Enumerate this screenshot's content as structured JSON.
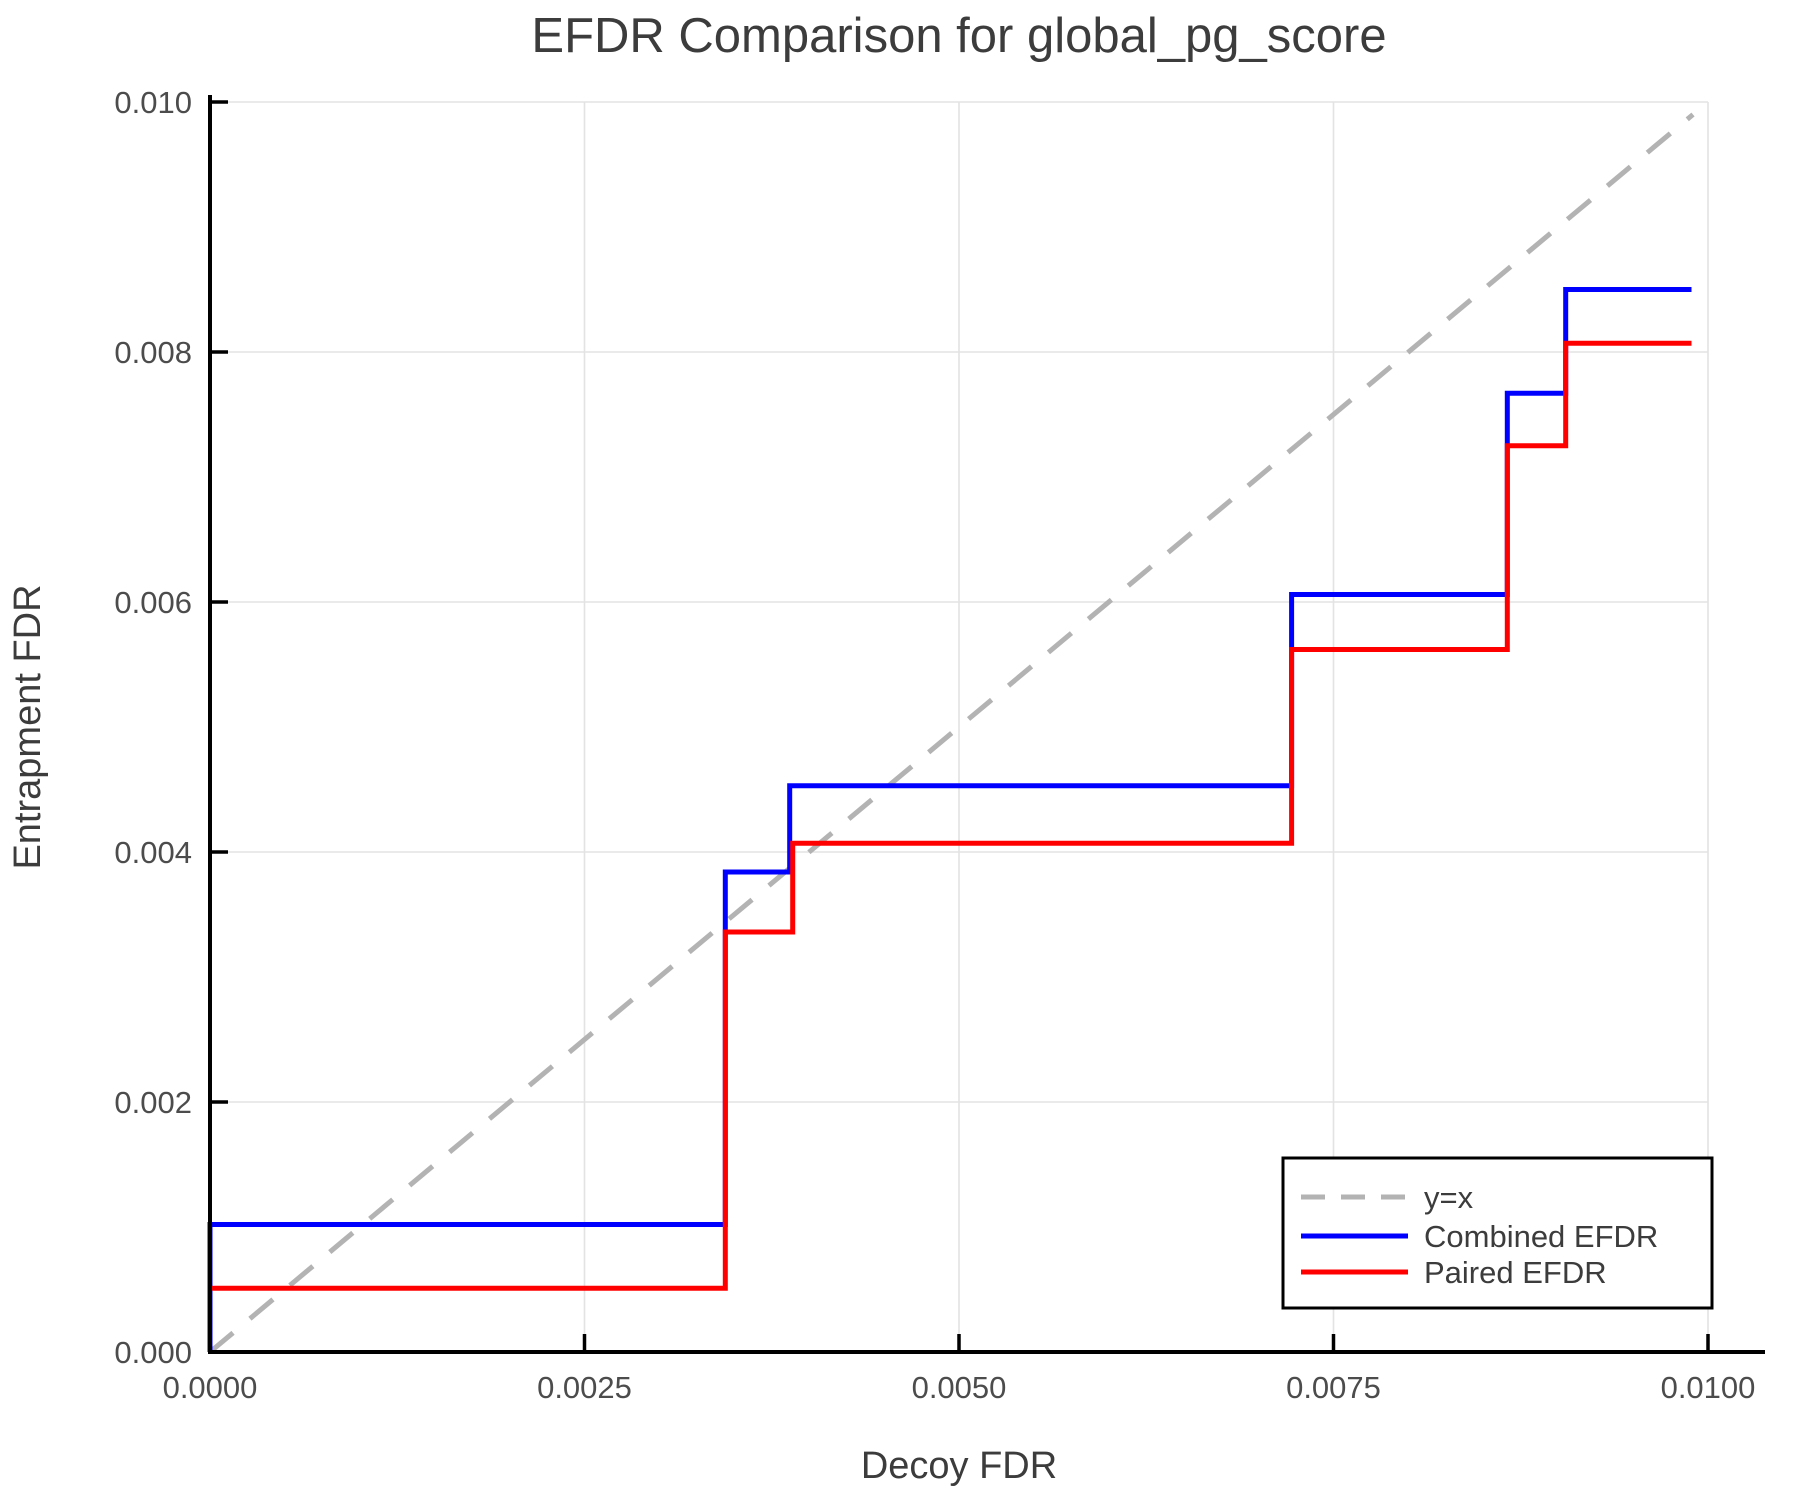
{
  "chart_data": {
    "type": "line",
    "title": "EFDR Comparison for global_pg_score",
    "xlabel": "Decoy FDR",
    "ylabel": "Entrapment FDR",
    "xlim": [
      0,
      0.01
    ],
    "ylim": [
      0,
      0.01
    ],
    "grid": true,
    "xticks": {
      "values": [
        0,
        0.0025,
        0.005,
        0.0075,
        0.01
      ],
      "labels": [
        "0.0000",
        "0.0025",
        "0.0050",
        "0.0075",
        "0.0100"
      ]
    },
    "yticks": {
      "values": [
        0,
        0.002,
        0.004,
        0.006,
        0.008,
        0.01
      ],
      "labels": [
        "0.000",
        "0.002",
        "0.004",
        "0.006",
        "0.008",
        "0.010"
      ]
    },
    "colors": {
      "text": "#3c3c3c",
      "tick_text": "#4c4c4c",
      "grid": "#e3e3e3",
      "spine": "#000000",
      "legend_border": "#000000",
      "legend_background": "#ffffff"
    },
    "legend": {
      "position": "lower right",
      "entries": [
        "y=x",
        "Combined EFDR",
        "Paired EFDR"
      ]
    },
    "series": [
      {
        "name": "y=x",
        "color": "#b3b3b3",
        "dashed": true,
        "points": [
          [
            0,
            0
          ],
          [
            0.0099,
            0.0099
          ]
        ]
      },
      {
        "name": "Combined EFDR",
        "color": "#0000ff",
        "dashed": false,
        "points": [
          [
            0,
            0
          ],
          [
            0,
            0.00102
          ],
          [
            0.00344,
            0.00102
          ],
          [
            0.00344,
            0.00384
          ],
          [
            0.00387,
            0.00384
          ],
          [
            0.00387,
            0.00453
          ],
          [
            0.00722,
            0.00453
          ],
          [
            0.00722,
            0.00606
          ],
          [
            0.00866,
            0.00606
          ],
          [
            0.00866,
            0.00767
          ],
          [
            0.00905,
            0.00767
          ],
          [
            0.00905,
            0.0085
          ],
          [
            0.00989,
            0.0085
          ]
        ]
      },
      {
        "name": "Paired EFDR",
        "color": "#ff0000",
        "dashed": false,
        "points": [
          [
            0,
            0.00051
          ],
          [
            0.00344,
            0.00051
          ],
          [
            0.00344,
            0.00336
          ],
          [
            0.00389,
            0.00336
          ],
          [
            0.00389,
            0.00407
          ],
          [
            0.00722,
            0.00407
          ],
          [
            0.00722,
            0.00562
          ],
          [
            0.00866,
            0.00562
          ],
          [
            0.00866,
            0.00725
          ],
          [
            0.00905,
            0.00725
          ],
          [
            0.00905,
            0.00807
          ],
          [
            0.00989,
            0.00807
          ]
        ]
      }
    ]
  }
}
